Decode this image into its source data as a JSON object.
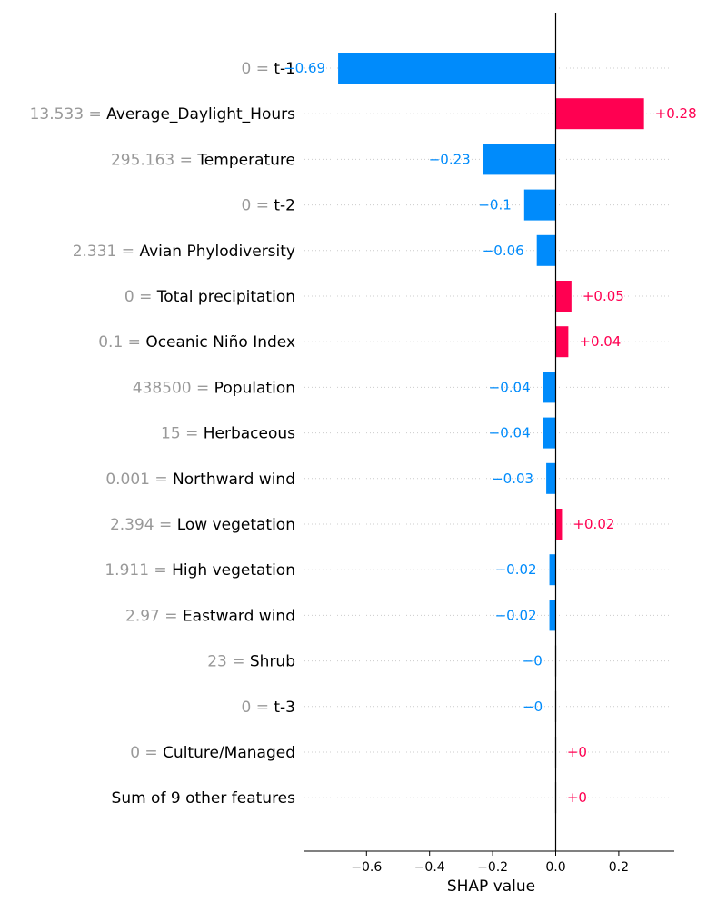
{
  "chart_data": {
    "type": "bar",
    "orientation": "horizontal",
    "xlabel": "SHAP value",
    "xlim": [
      -0.79,
      0.38
    ],
    "xticks": [
      -0.6,
      -0.4,
      -0.2,
      0.0,
      0.2
    ],
    "xtick_labels": [
      "−0.6",
      "−0.4",
      "−0.2",
      "0.0",
      "0.2"
    ],
    "grid": "dotted horizontal row guides",
    "colors": {
      "positive": "#ff0051",
      "negative": "#008bfb",
      "zero": "#d8d8d8",
      "feature_value": "#999999",
      "text": "#000000",
      "axis": "#000000",
      "grid": "#cccccc"
    },
    "bars": [
      {
        "feature_value": "0",
        "feature": "t-1",
        "value": -0.69,
        "value_label": "−0.69"
      },
      {
        "feature_value": "13.533",
        "feature": "Average_Daylight_Hours",
        "value": 0.28,
        "value_label": "+0.28"
      },
      {
        "feature_value": "295.163",
        "feature": "Temperature",
        "value": -0.23,
        "value_label": "−0.23"
      },
      {
        "feature_value": "0",
        "feature": "t-2",
        "value": -0.1,
        "value_label": "−0.1"
      },
      {
        "feature_value": "2.331",
        "feature": "Avian Phylodiversity",
        "value": -0.06,
        "value_label": "−0.06"
      },
      {
        "feature_value": "0",
        "feature": "Total precipitation",
        "value": 0.05,
        "value_label": "+0.05"
      },
      {
        "feature_value": "0.1",
        "feature": "Oceanic Niño Index",
        "value": 0.04,
        "value_label": "+0.04"
      },
      {
        "feature_value": "438500",
        "feature": "Population",
        "value": -0.04,
        "value_label": "−0.04"
      },
      {
        "feature_value": "15",
        "feature": "Herbaceous",
        "value": -0.04,
        "value_label": "−0.04"
      },
      {
        "feature_value": "0.001",
        "feature": "Northward wind",
        "value": -0.03,
        "value_label": "−0.03"
      },
      {
        "feature_value": "2.394",
        "feature": "Low vegetation",
        "value": 0.02,
        "value_label": "+0.02"
      },
      {
        "feature_value": "1.911",
        "feature": "High vegetation",
        "value": -0.02,
        "value_label": "−0.02"
      },
      {
        "feature_value": "2.97",
        "feature": "Eastward wind",
        "value": -0.02,
        "value_label": "−0.02"
      },
      {
        "feature_value": "23",
        "feature": "Shrub",
        "value": -0.002,
        "value_label": "−0"
      },
      {
        "feature_value": "0",
        "feature": "t-3",
        "value": -0.001,
        "value_label": "−0"
      },
      {
        "feature_value": "0",
        "feature": "Culture/Managed",
        "value": 0.001,
        "value_label": "+0"
      },
      {
        "feature_value": "",
        "feature": "Sum of 9 other features",
        "value": 0.001,
        "value_label": "+0"
      }
    ]
  }
}
